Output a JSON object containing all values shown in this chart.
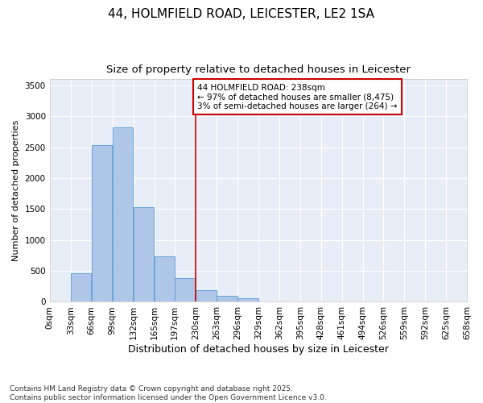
{
  "title": "44, HOLMFIELD ROAD, LEICESTER, LE2 1SA",
  "subtitle": "Size of property relative to detached houses in Leicester",
  "xlabel": "Distribution of detached houses by size in Leicester",
  "ylabel": "Number of detached properties",
  "bar_color": "#aec6e8",
  "bar_edge_color": "#5b9bd5",
  "background_color": "#e8eef8",
  "grid_color": "#ffffff",
  "annotation_box_edge_color": "#cc0000",
  "vline_color": "#cc0000",
  "categories": [
    "0sqm",
    "33sqm",
    "66sqm",
    "99sqm",
    "132sqm",
    "165sqm",
    "197sqm",
    "230sqm",
    "263sqm",
    "296sqm",
    "329sqm",
    "362sqm",
    "395sqm",
    "428sqm",
    "461sqm",
    "494sqm",
    "526sqm",
    "559sqm",
    "592sqm",
    "625sqm",
    "658sqm"
  ],
  "bin_edges": [
    0,
    33,
    66,
    99,
    132,
    165,
    197,
    230,
    263,
    296,
    329,
    362,
    395,
    428,
    461,
    494,
    526,
    559,
    592,
    625,
    658
  ],
  "bar_heights": [
    5,
    460,
    2530,
    2820,
    1530,
    730,
    390,
    185,
    95,
    60,
    0,
    0,
    0,
    0,
    0,
    0,
    0,
    0,
    0,
    0
  ],
  "vline_x": 230,
  "ylim": [
    0,
    3600
  ],
  "yticks": [
    0,
    500,
    1000,
    1500,
    2000,
    2500,
    3000,
    3500
  ],
  "annotation_text": "44 HOLMFIELD ROAD: 238sqm\n← 97% of detached houses are smaller (8,475)\n3% of semi-detached houses are larger (264) →",
  "footer_text": "Contains HM Land Registry data © Crown copyright and database right 2025.\nContains public sector information licensed under the Open Government Licence v3.0.",
  "title_fontsize": 11,
  "subtitle_fontsize": 9.5,
  "xlabel_fontsize": 9,
  "ylabel_fontsize": 8,
  "tick_fontsize": 7.5,
  "annotation_fontsize": 7.5,
  "footer_fontsize": 6.5
}
